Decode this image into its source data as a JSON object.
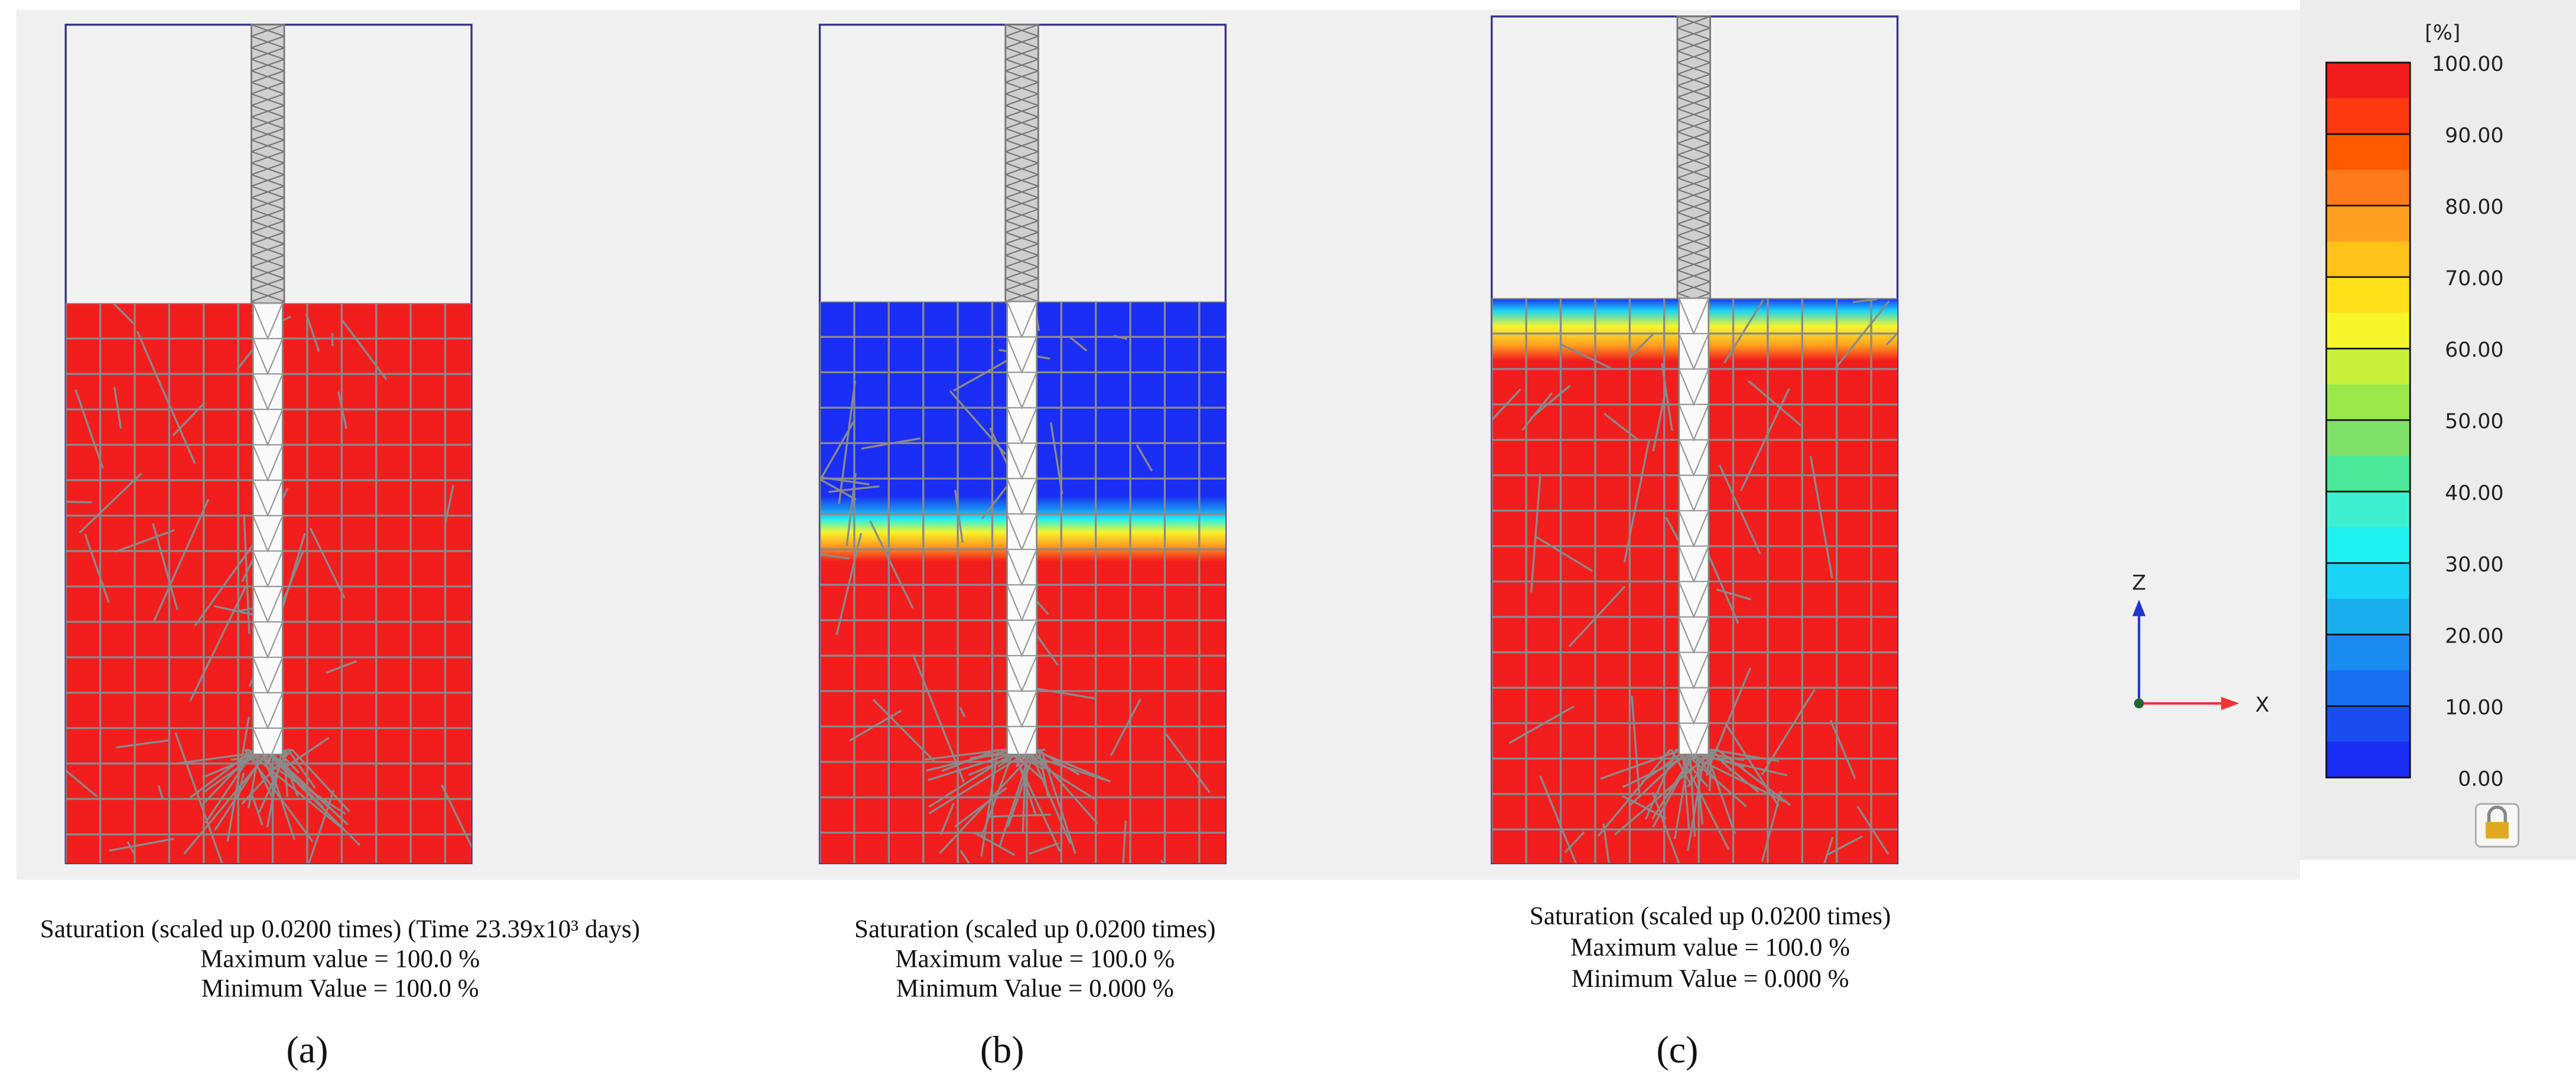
{
  "panels": [
    {
      "caption": [
        "Saturation (scaled up 0.0200 times) (Time 23.39x10³ days)",
        "Maximum value = 100.0 %",
        "Minimum Value = 100.0 %"
      ],
      "label": "(a)"
    },
    {
      "caption": [
        "Saturation (scaled up 0.0200 times)",
        "Maximum value = 100.0 %",
        "Minimum Value = 0.000 %"
      ],
      "label": "(b)"
    },
    {
      "caption": [
        "Saturation (scaled up 0.0200 times)",
        "Maximum value = 100.0 %",
        "Minimum Value = 0.000 %"
      ],
      "label": "(c)"
    }
  ],
  "legend": {
    "unit": "[%]",
    "ticks": [
      "100.00",
      "90.00",
      "80.00",
      "70.00",
      "60.00",
      "50.00",
      "40.00",
      "30.00",
      "20.00",
      "10.00",
      "0.00"
    ]
  },
  "axes": {
    "z": "Z",
    "x": "X"
  }
}
